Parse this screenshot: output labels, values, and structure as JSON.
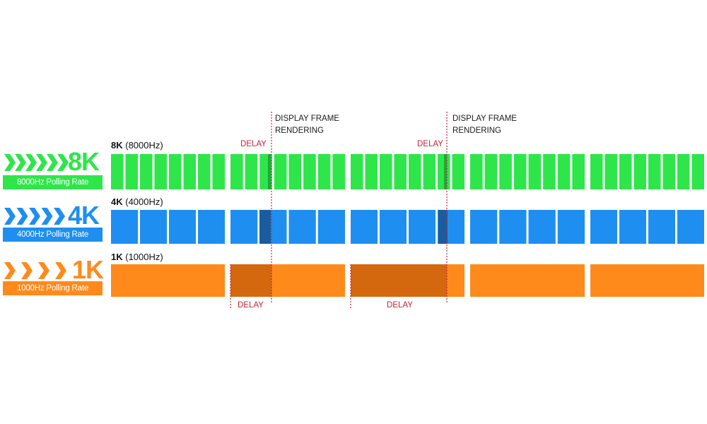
{
  "badges": [
    {
      "big": "8K",
      "caption": "8000Hz Polling Rate",
      "color": "#2ee64a",
      "arrows": 6
    },
    {
      "big": "4K",
      "caption": "4000Hz Polling Rate",
      "color": "#1e8ff0",
      "arrows": 5
    },
    {
      "big": "1K",
      "caption": "1000Hz Polling Rate",
      "color": "#ff8a1c",
      "arrows": 4
    }
  ],
  "rows": [
    {
      "label_bold": "8K",
      "label_rest": " (8000Hz)"
    },
    {
      "label_bold": "4K",
      "label_rest": " (4000Hz)"
    },
    {
      "label_bold": "1K",
      "label_rest": " (1000Hz)"
    }
  ],
  "annotations": {
    "frame_line1": "DISPLAY FRAME",
    "frame_line2": "RENDERING",
    "delay": "DELAY"
  },
  "colors": {
    "green": "#2ee64a",
    "blue": "#1e8ff0",
    "blue_dark": "#1a5c9e",
    "orange": "#ff8a1c",
    "orange_dark": "#d4680f",
    "line": "#cc2233"
  }
}
